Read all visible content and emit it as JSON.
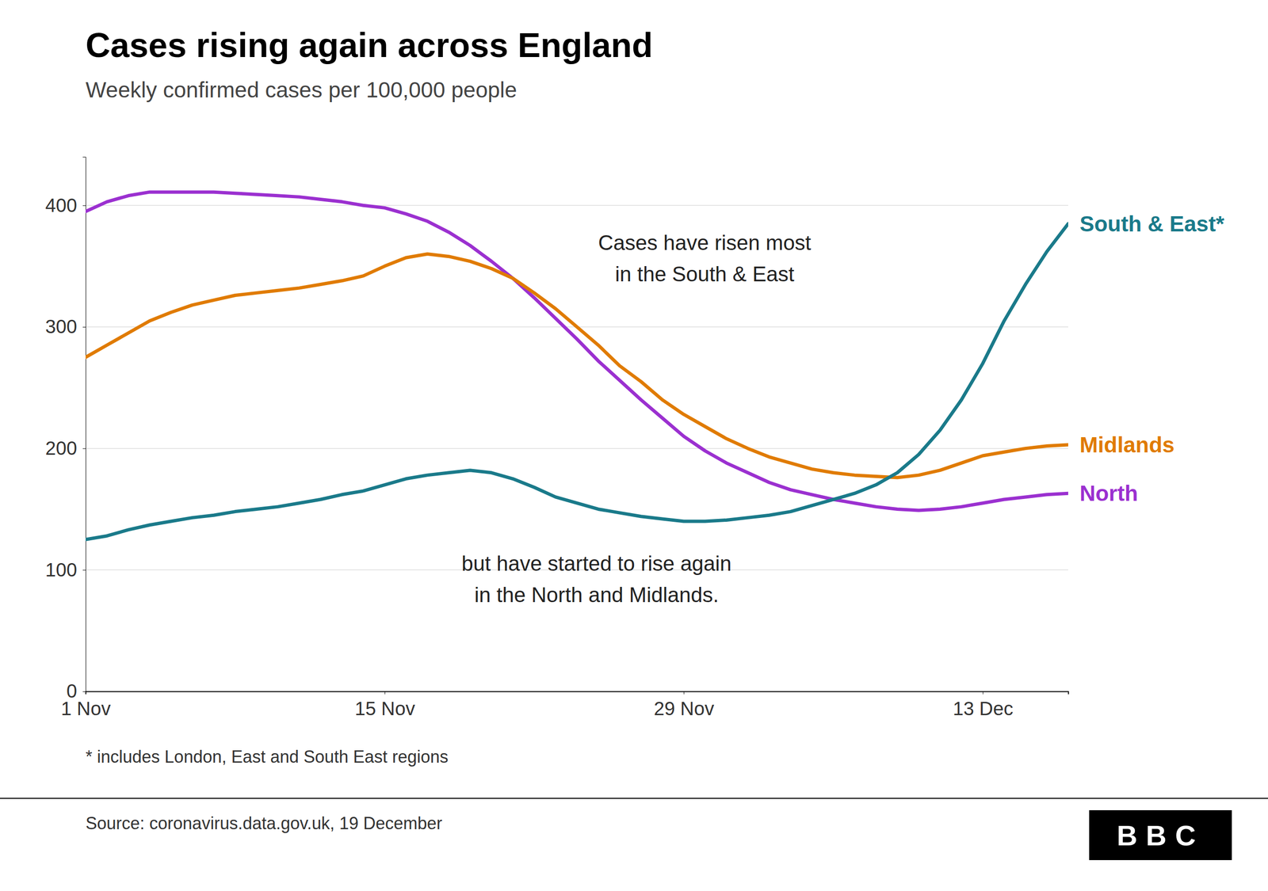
{
  "chart_data": {
    "type": "line",
    "title": "Cases rising again across England",
    "subtitle": "Weekly confirmed cases per 100,000 people",
    "footnote": "* includes London, East and South East regions",
    "source": "Source: coronavirus.data.gov.uk, 19 December",
    "logo": "BBC",
    "annotations": [
      "Cases have risen most\nin the South & East",
      "but have started to rise again\nin the North and Midlands."
    ],
    "x": [
      0,
      1,
      2,
      3,
      4,
      5,
      6,
      7,
      8,
      9,
      10,
      11,
      12,
      13,
      14,
      15,
      16,
      17,
      18,
      19,
      20,
      21,
      22,
      23,
      24,
      25,
      26,
      27,
      28,
      29,
      30,
      31,
      32,
      33,
      34,
      35,
      36,
      37,
      38,
      39,
      40,
      41,
      42,
      43,
      44,
      45,
      46
    ],
    "xlim": [
      0,
      46
    ],
    "xticks": [
      {
        "value": 0,
        "label": "1 Nov"
      },
      {
        "value": 14,
        "label": "15 Nov"
      },
      {
        "value": 28,
        "label": "29 Nov"
      },
      {
        "value": 42,
        "label": "13 Dec"
      }
    ],
    "ylim": [
      0,
      440
    ],
    "yticks": [
      0,
      100,
      200,
      300,
      400
    ],
    "grid": true,
    "series": [
      {
        "name": "South & East*",
        "color": "#1a7a8a",
        "values": [
          125,
          128,
          133,
          137,
          140,
          143,
          145,
          148,
          150,
          152,
          155,
          158,
          162,
          165,
          170,
          175,
          178,
          180,
          182,
          180,
          175,
          168,
          160,
          155,
          150,
          147,
          144,
          142,
          140,
          140,
          141,
          143,
          145,
          148,
          153,
          158,
          163,
          170,
          180,
          195,
          215,
          240,
          270,
          305,
          335,
          362,
          385
        ]
      },
      {
        "name": "Midlands",
        "color": "#e07b00",
        "values": [
          275,
          285,
          295,
          305,
          312,
          318,
          322,
          326,
          328,
          330,
          332,
          335,
          338,
          342,
          350,
          357,
          360,
          358,
          354,
          348,
          340,
          328,
          315,
          300,
          285,
          268,
          255,
          240,
          228,
          218,
          208,
          200,
          193,
          188,
          183,
          180,
          178,
          177,
          176,
          178,
          182,
          188,
          194,
          197,
          200,
          202,
          203
        ]
      },
      {
        "name": "North",
        "color": "#9b30d0",
        "values": [
          395,
          403,
          408,
          411,
          411,
          411,
          411,
          410,
          409,
          408,
          407,
          405,
          403,
          400,
          398,
          393,
          387,
          378,
          367,
          354,
          340,
          324,
          307,
          290,
          272,
          256,
          240,
          225,
          210,
          198,
          188,
          180,
          172,
          166,
          162,
          158,
          155,
          152,
          150,
          149,
          150,
          152,
          155,
          158,
          160,
          162,
          163
        ]
      }
    ]
  }
}
